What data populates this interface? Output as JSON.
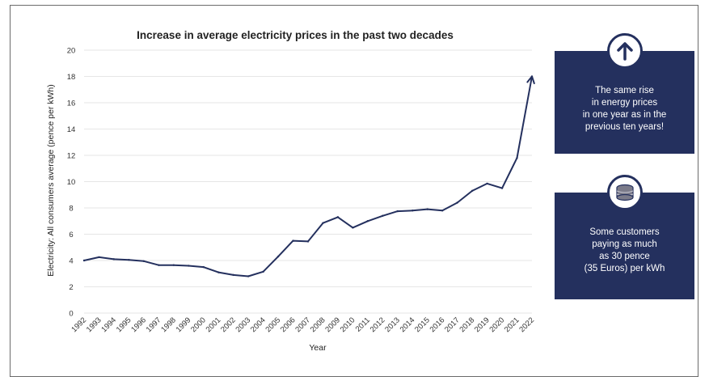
{
  "chart_data": {
    "type": "line",
    "title": "Increase in average electricity prices in the past two decades",
    "xlabel": "Year",
    "ylabel": "Electricity: All consumers average (pence per kWh)",
    "ylim": [
      0,
      20
    ],
    "yticks": [
      0,
      2,
      4,
      6,
      8,
      10,
      12,
      14,
      16,
      18,
      20
    ],
    "grid": true,
    "categories": [
      "1992",
      "1993",
      "1994",
      "1995",
      "1996",
      "1997",
      "1998",
      "1999",
      "2000",
      "2001",
      "2002",
      "2003",
      "2004",
      "2005",
      "2006",
      "2007",
      "2008",
      "2009",
      "2010",
      "2011",
      "2012",
      "2013",
      "2014",
      "2015",
      "2016",
      "2017",
      "2018",
      "2019",
      "2020",
      "2021",
      "2022"
    ],
    "series": [
      {
        "values": [
          4.0,
          4.25,
          4.1,
          4.05,
          3.95,
          3.65,
          3.65,
          3.6,
          3.5,
          3.1,
          2.9,
          2.8,
          3.15,
          4.3,
          5.5,
          5.45,
          6.85,
          7.3,
          6.5,
          7.0,
          7.4,
          7.75,
          7.8,
          7.9,
          7.8,
          8.4,
          9.3,
          9.85,
          9.5,
          11.8,
          18.0
        ]
      }
    ],
    "color": "#24305e",
    "end_marker": "arrow"
  },
  "info_boxes": [
    {
      "icon": "up-arrow-icon",
      "text": "The same rise\nin energy prices\nin one year as in the\nprevious ten years!"
    },
    {
      "icon": "coin-stack-icon",
      "text": "Some customers\npaying as much\nas 30 pence\n(35 Euros) per kWh"
    }
  ],
  "colors": {
    "accent": "#24305e",
    "grid": "#e6e6e6"
  }
}
